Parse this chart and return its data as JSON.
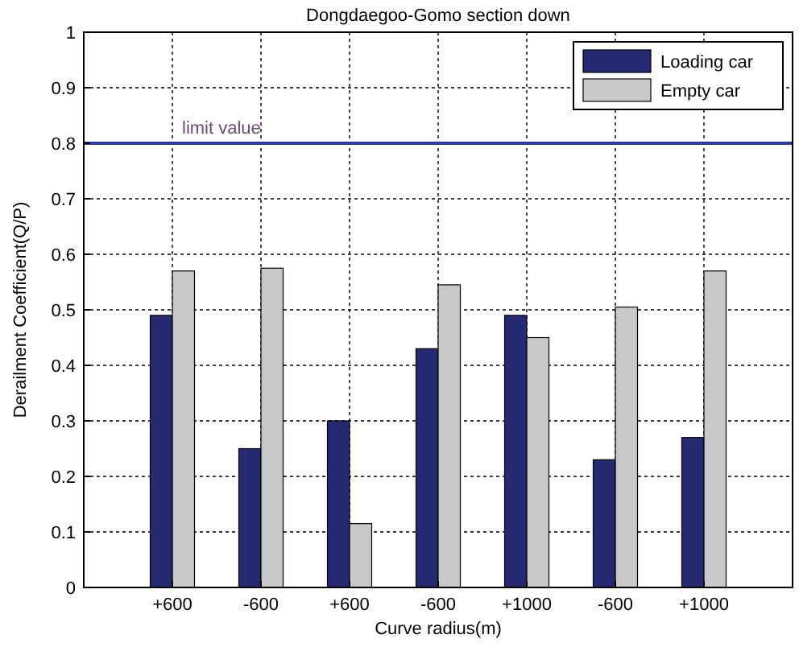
{
  "chart_data": {
    "type": "bar",
    "title": "Dongdaegoo-Gomo section down",
    "xlabel": "Curve radius(m)",
    "ylabel": "Derailment Coefficient(Q/P)",
    "categories": [
      "+600",
      "-600",
      "+600",
      "-600",
      "+1000",
      "-600",
      "+1000"
    ],
    "series": [
      {
        "name": "Loading car",
        "color": "#262a73",
        "values": [
          0.49,
          0.25,
          0.3,
          0.43,
          0.49,
          0.23,
          0.27
        ]
      },
      {
        "name": "Empty car",
        "color": "#c8c8c8",
        "values": [
          0.57,
          0.575,
          0.115,
          0.545,
          0.45,
          0.505,
          0.57
        ]
      }
    ],
    "ylim": [
      0,
      1
    ],
    "yticks": [
      0,
      0.1,
      0.2,
      0.3,
      0.4,
      0.5,
      0.6,
      0.7,
      0.8,
      0.9,
      1
    ],
    "ref_lines": [
      {
        "axis": "y",
        "value": 0.8,
        "label": "limit value",
        "color": "#2b3a9e"
      }
    ],
    "grid": true,
    "legend": "top right"
  }
}
